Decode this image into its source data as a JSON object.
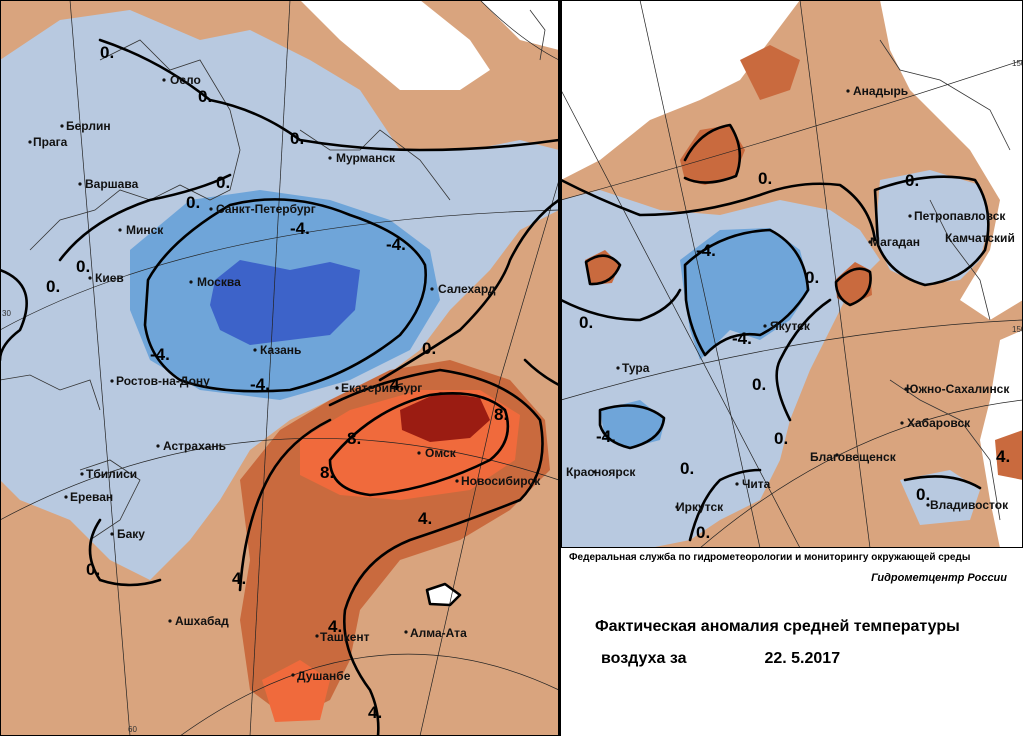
{
  "agency": "Федеральная служба по гидрометеорологии и мониторингу окружающей среды",
  "center": "Гидрометцентр России",
  "title_line1": "Фактическая аномалия средней температуры",
  "title_line2": "воздуха за",
  "date": "22. 5.2017",
  "colors": {
    "cold_2": "#b8c9e0",
    "cold_4": "#6fa5d9",
    "cold_6": "#3d63c9",
    "warm_2": "#d9a47e",
    "warm_4": "#c96a3e",
    "warm_6": "#f06a3c",
    "warm_8": "#e8b9a0",
    "warm_10": "#9b1c12",
    "neutral": "#e9c9b0"
  },
  "cities_west": [
    "Осло",
    "Берлин",
    "Прага",
    "Варшава",
    "Мурманск",
    "Минск",
    "Санкт-Петербург",
    "Киев",
    "Москва",
    "Салехард",
    "Казань",
    "Ростов-на-Дону",
    "Екатеринбург",
    "Астрахань",
    "Омск",
    "Тбилиси",
    "Новосибирск",
    "Ереван",
    "Баку",
    "Ашхабад",
    "Ташкент",
    "Алма-Ата",
    "Душанбе"
  ],
  "cities_east": [
    "Анадырь",
    "Петропавловск",
    "Камчатский",
    "Магадан",
    "Якутск",
    "Тура",
    "Южно-Сахалинск",
    "Хабаровск",
    "Красноярск",
    "Благовещенск",
    "Иркутск",
    "Чита",
    "Владивосток"
  ],
  "isolines_west": [
    "0.",
    "0.",
    "0.",
    "0.",
    "0.",
    "0.",
    "-4.",
    "-4.",
    "-4.",
    "-4.",
    "0.",
    "0.",
    "4.",
    "8.",
    "8.",
    "8.",
    "4.",
    "4.",
    "4.",
    "4.",
    "0."
  ],
  "isolines_east": [
    "0.",
    "0.",
    "0.",
    "0.",
    "-4.",
    "-4.",
    "-4.",
    "0.",
    "0.",
    "0.",
    "0.",
    "0.",
    "4."
  ],
  "degree_labels": [
    "30",
    "60",
    "150",
    "150"
  ]
}
